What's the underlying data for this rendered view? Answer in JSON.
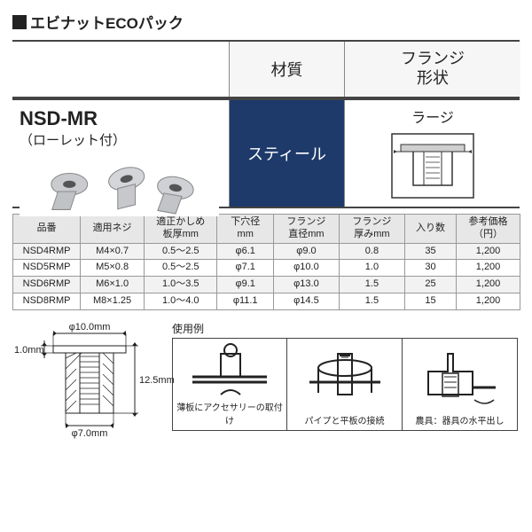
{
  "page_title": "エビナットECOパック",
  "header": {
    "col_material": "材質",
    "col_flange": "フランジ\n形状"
  },
  "product": {
    "name": "NSD-MR",
    "sub": "（ローレット付）",
    "image_alt": "rivet-nuts-photo"
  },
  "material_value": "スティール",
  "flange_value": "ラージ",
  "spec_columns": [
    "品番",
    "適用ネジ",
    "適正かしめ\n板厚mm",
    "下穴径\nmm",
    "フランジ\n直径mm",
    "フランジ\n厚みmm",
    "入り数",
    "参考価格\n（円）"
  ],
  "spec_rows": [
    [
      "NSD4RMP",
      "M4×0.7",
      "0.5～2.5",
      "φ6.1",
      "φ9.0",
      "0.8",
      "35",
      "1,200"
    ],
    [
      "NSD5RMP",
      "M5×0.8",
      "0.5～2.5",
      "φ7.1",
      "φ10.0",
      "1.0",
      "30",
      "1,200"
    ],
    [
      "NSD6RMP",
      "M6×1.0",
      "1.0～3.5",
      "φ9.1",
      "φ13.0",
      "1.5",
      "25",
      "1,200"
    ],
    [
      "NSD8RMP",
      "M8×1.25",
      "1.0～4.0",
      "φ11.1",
      "φ14.5",
      "1.5",
      "15",
      "1,200"
    ]
  ],
  "diagram": {
    "top_dim": "φ10.0mm",
    "left_dim": "1.0mm",
    "right_dim": "12.5mm",
    "bottom_dim": "φ7.0mm"
  },
  "usage_label": "使用例",
  "usage": [
    "薄板にアクセサリーの取付け",
    "パイプと平板の接続",
    "農具：器具の水平出し"
  ],
  "colors": {
    "dark": "#222222",
    "navy": "#1e3a6b",
    "grid": "#999999",
    "header_bg": "#e7e7e7",
    "row_alt": "#f2f2f2"
  }
}
